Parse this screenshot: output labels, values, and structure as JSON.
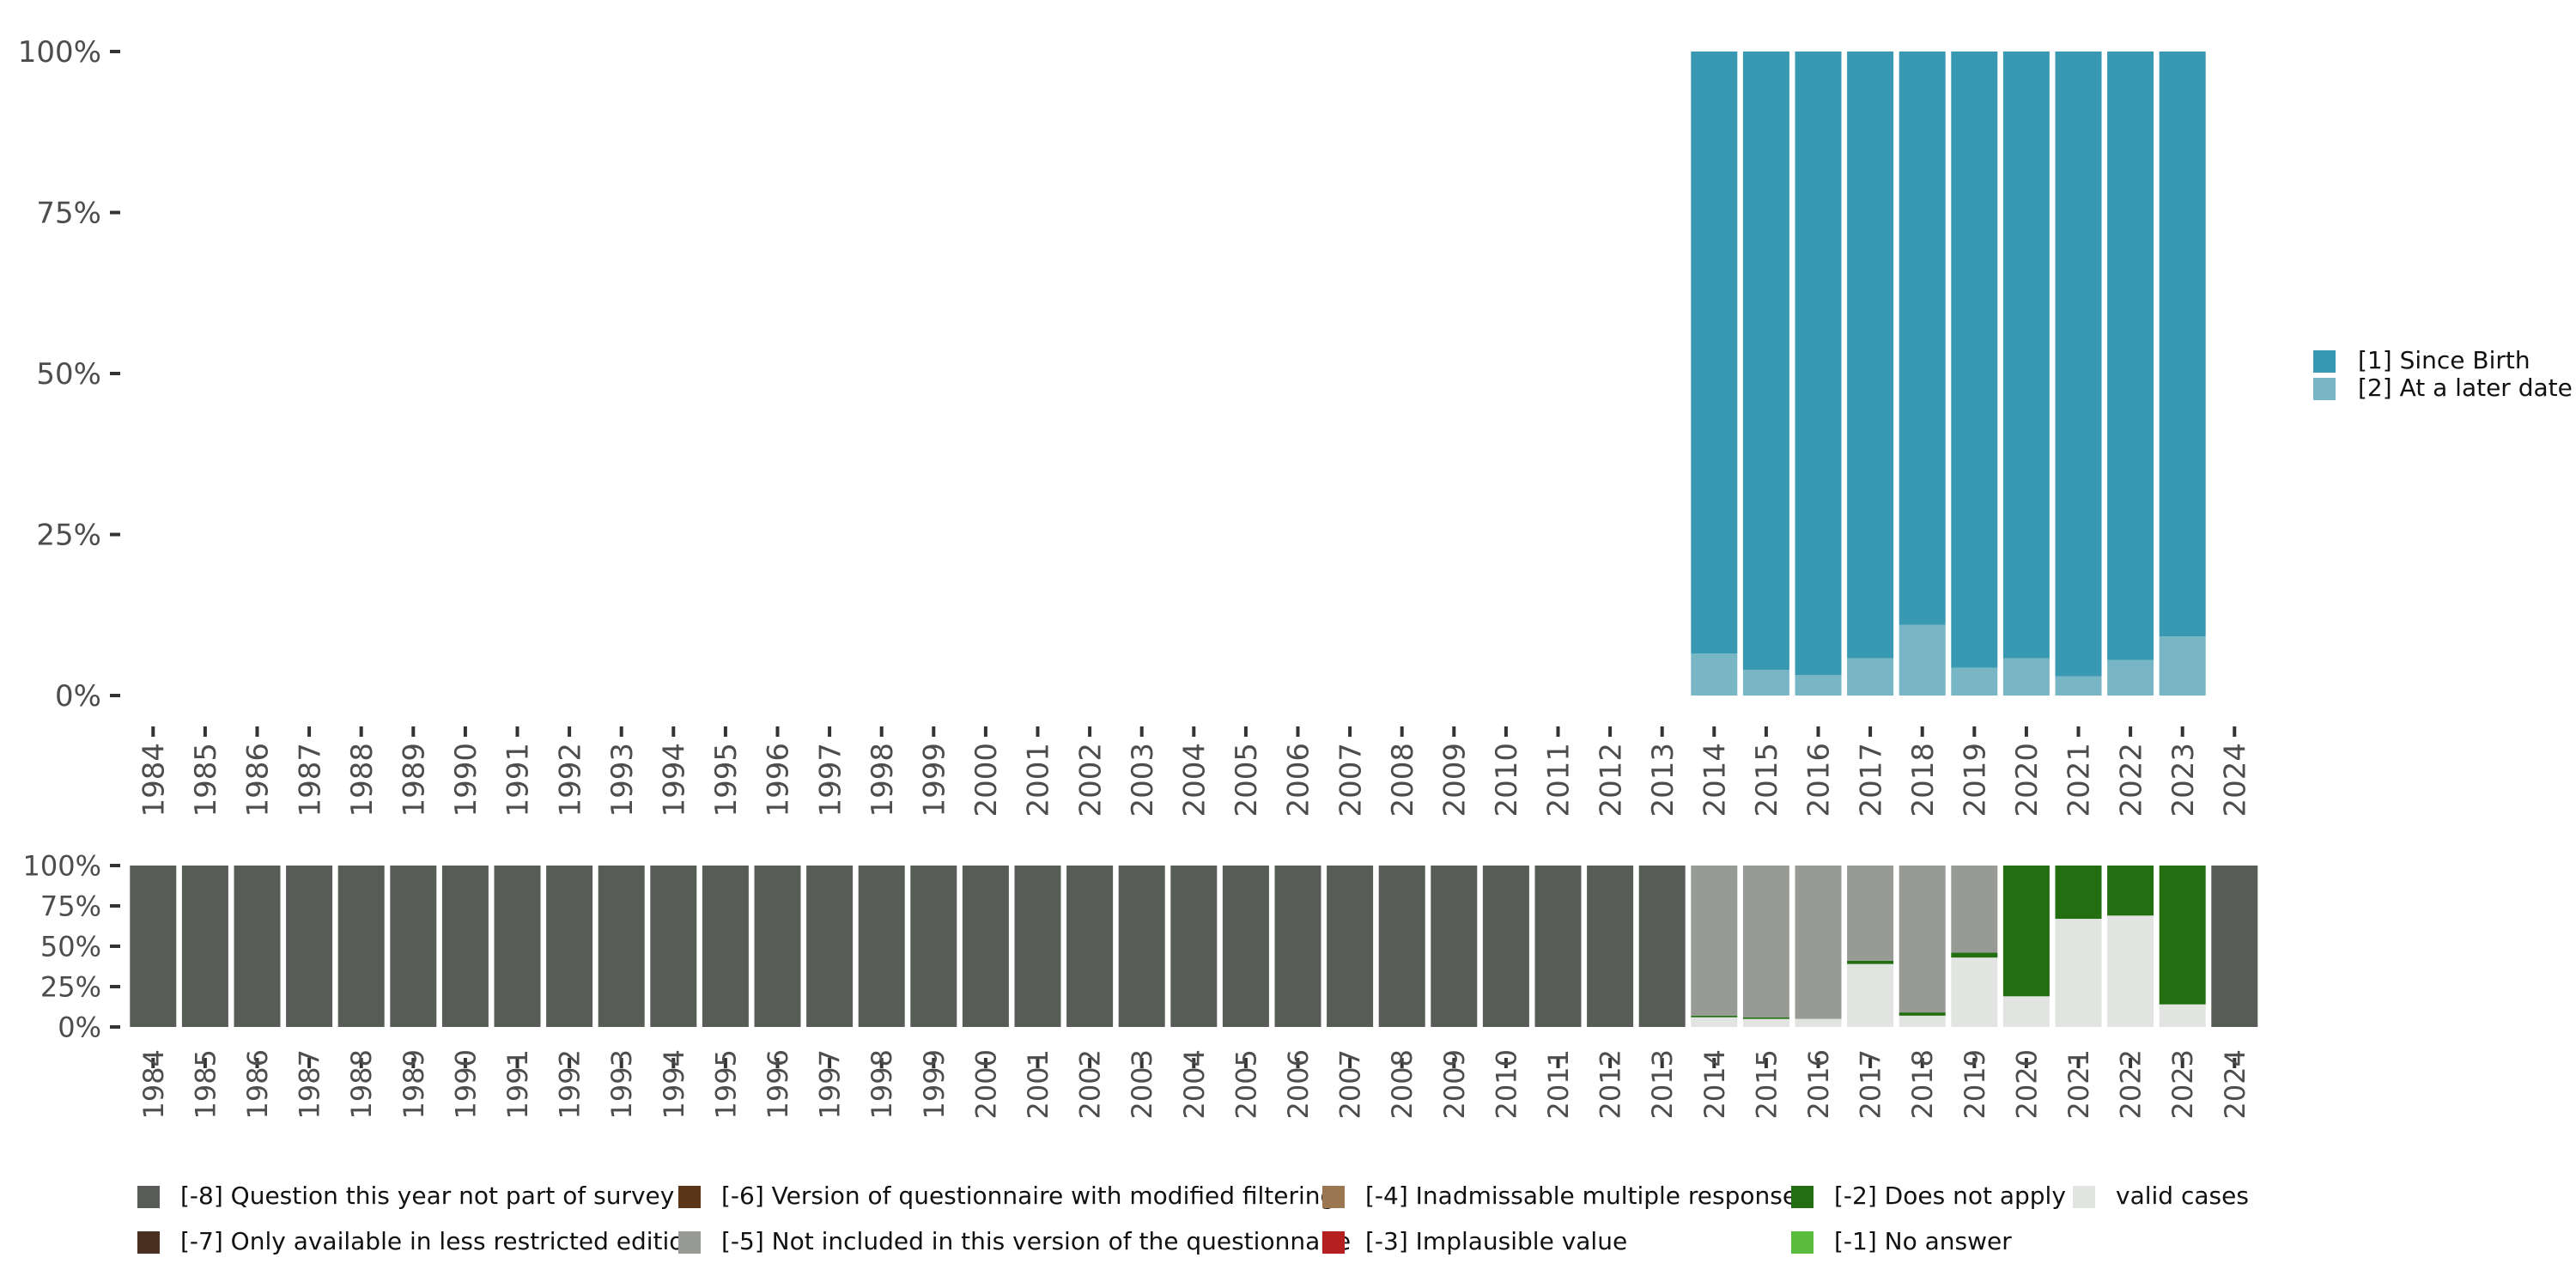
{
  "chart_data": [
    {
      "type": "bar",
      "stacked": true,
      "title": "",
      "xlabel": "",
      "ylabel": "",
      "ylim": [
        0,
        100
      ],
      "y_ticks": [
        "0%",
        "25%",
        "50%",
        "75%",
        "100%"
      ],
      "categories": [
        "1984",
        "1985",
        "1986",
        "1987",
        "1988",
        "1989",
        "1990",
        "1991",
        "1992",
        "1993",
        "1994",
        "1995",
        "1996",
        "1997",
        "1998",
        "1999",
        "2000",
        "2001",
        "2002",
        "2003",
        "2004",
        "2005",
        "2006",
        "2007",
        "2008",
        "2009",
        "2010",
        "2011",
        "2012",
        "2013",
        "2014",
        "2015",
        "2016",
        "2017",
        "2018",
        "2019",
        "2020",
        "2021",
        "2022",
        "2023",
        "2024"
      ],
      "legend_position": "right",
      "series": [
        {
          "name": "[2] At a later date",
          "color": "#78b6c5",
          "values": [
            null,
            null,
            null,
            null,
            null,
            null,
            null,
            null,
            null,
            null,
            null,
            null,
            null,
            null,
            null,
            null,
            null,
            null,
            null,
            null,
            null,
            null,
            null,
            null,
            null,
            null,
            null,
            null,
            null,
            null,
            6.5,
            4,
            3.2,
            5.8,
            11,
            4.3,
            5.8,
            3,
            5.5,
            9.2,
            null
          ]
        },
        {
          "name": "[1] Since Birth",
          "color": "#3a99b2",
          "values": [
            null,
            null,
            null,
            null,
            null,
            null,
            null,
            null,
            null,
            null,
            null,
            null,
            null,
            null,
            null,
            null,
            null,
            null,
            null,
            null,
            null,
            null,
            null,
            null,
            null,
            null,
            null,
            null,
            null,
            null,
            93.5,
            96,
            96.8,
            94.2,
            89,
            95.7,
            94.2,
            97,
            94.5,
            90.8,
            null
          ]
        }
      ]
    },
    {
      "type": "bar",
      "stacked": true,
      "title": "",
      "xlabel": "",
      "ylabel": "",
      "ylim": [
        0,
        100
      ],
      "y_ticks": [
        "0%",
        "25%",
        "50%",
        "75%",
        "100%"
      ],
      "categories": [
        "1984",
        "1985",
        "1986",
        "1987",
        "1988",
        "1989",
        "1990",
        "1991",
        "1992",
        "1993",
        "1994",
        "1995",
        "1996",
        "1997",
        "1998",
        "1999",
        "2000",
        "2001",
        "2002",
        "2003",
        "2004",
        "2005",
        "2006",
        "2007",
        "2008",
        "2009",
        "2010",
        "2011",
        "2012",
        "2013",
        "2014",
        "2015",
        "2016",
        "2017",
        "2018",
        "2019",
        "2020",
        "2021",
        "2022",
        "2023",
        "2024"
      ],
      "legend_position": "bottom",
      "series": [
        {
          "name": "valid cases",
          "color": "#e1e4e0",
          "values": [
            0,
            0,
            0,
            0,
            0,
            0,
            0,
            0,
            0,
            0,
            0,
            0,
            0,
            0,
            0,
            0,
            0,
            0,
            0,
            0,
            0,
            0,
            0,
            0,
            0,
            0,
            0,
            0,
            0,
            0,
            6,
            5,
            5,
            39,
            7,
            43,
            19,
            67,
            69,
            14,
            0
          ]
        },
        {
          "name": "[-1] No answer",
          "color": "#5bbd3e",
          "values": [
            0,
            0,
            0,
            0,
            0,
            0,
            0,
            0,
            0,
            0,
            0,
            0,
            0,
            0,
            0,
            0,
            0,
            0,
            0,
            0,
            0,
            0,
            0,
            0,
            0,
            0,
            0,
            0,
            0,
            0,
            0,
            0,
            0,
            0,
            0,
            0,
            0,
            0,
            0,
            0,
            0
          ]
        },
        {
          "name": "[-2] Does not apply",
          "color": "#226e11",
          "values": [
            0,
            0,
            0,
            0,
            0,
            0,
            0,
            0,
            0,
            0,
            0,
            0,
            0,
            0,
            0,
            0,
            0,
            0,
            0,
            0,
            0,
            0,
            0,
            0,
            0,
            0,
            0,
            0,
            0,
            0,
            1,
            1,
            0,
            2,
            2,
            3,
            81,
            33,
            31,
            86,
            0
          ]
        },
        {
          "name": "[-3] Implausible value",
          "color": "#b51f1f",
          "values": [
            0,
            0,
            0,
            0,
            0,
            0,
            0,
            0,
            0,
            0,
            0,
            0,
            0,
            0,
            0,
            0,
            0,
            0,
            0,
            0,
            0,
            0,
            0,
            0,
            0,
            0,
            0,
            0,
            0,
            0,
            0,
            0,
            0,
            0,
            0,
            0,
            0,
            0,
            0,
            0,
            0
          ]
        },
        {
          "name": "[-4] Inadmissable multiple response",
          "color": "#9a7750",
          "values": [
            0,
            0,
            0,
            0,
            0,
            0,
            0,
            0,
            0,
            0,
            0,
            0,
            0,
            0,
            0,
            0,
            0,
            0,
            0,
            0,
            0,
            0,
            0,
            0,
            0,
            0,
            0,
            0,
            0,
            0,
            0,
            0,
            0,
            0,
            0,
            0,
            0,
            0,
            0,
            0,
            0
          ]
        },
        {
          "name": "[-5] Not included in this version of the questionnaire",
          "color": "#989b95",
          "values": [
            0,
            0,
            0,
            0,
            0,
            0,
            0,
            0,
            0,
            0,
            0,
            0,
            0,
            0,
            0,
            0,
            0,
            0,
            0,
            0,
            0,
            0,
            0,
            0,
            0,
            0,
            0,
            0,
            0,
            0,
            93,
            94,
            95,
            59,
            91,
            54,
            0,
            0,
            0,
            0,
            0
          ]
        },
        {
          "name": "[-6] Version of questionnaire with modified filtering",
          "color": "#5a3518",
          "values": [
            0,
            0,
            0,
            0,
            0,
            0,
            0,
            0,
            0,
            0,
            0,
            0,
            0,
            0,
            0,
            0,
            0,
            0,
            0,
            0,
            0,
            0,
            0,
            0,
            0,
            0,
            0,
            0,
            0,
            0,
            0,
            0,
            0,
            0,
            0,
            0,
            0,
            0,
            0,
            0,
            0
          ]
        },
        {
          "name": "[-7] Only available in less restricted edition",
          "color": "#4a3020",
          "values": [
            0,
            0,
            0,
            0,
            0,
            0,
            0,
            0,
            0,
            0,
            0,
            0,
            0,
            0,
            0,
            0,
            0,
            0,
            0,
            0,
            0,
            0,
            0,
            0,
            0,
            0,
            0,
            0,
            0,
            0,
            0,
            0,
            0,
            0,
            0,
            0,
            0,
            0,
            0,
            0,
            0
          ]
        },
        {
          "name": "[-8] Question this year not part of survey",
          "color": "#575c56",
          "values": [
            100,
            100,
            100,
            100,
            100,
            100,
            100,
            100,
            100,
            100,
            100,
            100,
            100,
            100,
            100,
            100,
            100,
            100,
            100,
            100,
            100,
            100,
            100,
            100,
            100,
            100,
            100,
            100,
            100,
            100,
            0,
            0,
            0,
            0,
            0,
            0,
            0,
            0,
            0,
            0,
            100
          ]
        }
      ],
      "legend_order": [
        "[-8] Question this year not part of survey",
        "[-7] Only available in less restricted edition",
        "[-6] Version of questionnaire with modified filtering",
        "[-5] Not included in this version of the questionnaire",
        "[-4] Inadmissable multiple response",
        "[-3] Implausible value",
        "[-2] Does not apply",
        "[-1] No answer",
        "valid cases"
      ]
    }
  ]
}
